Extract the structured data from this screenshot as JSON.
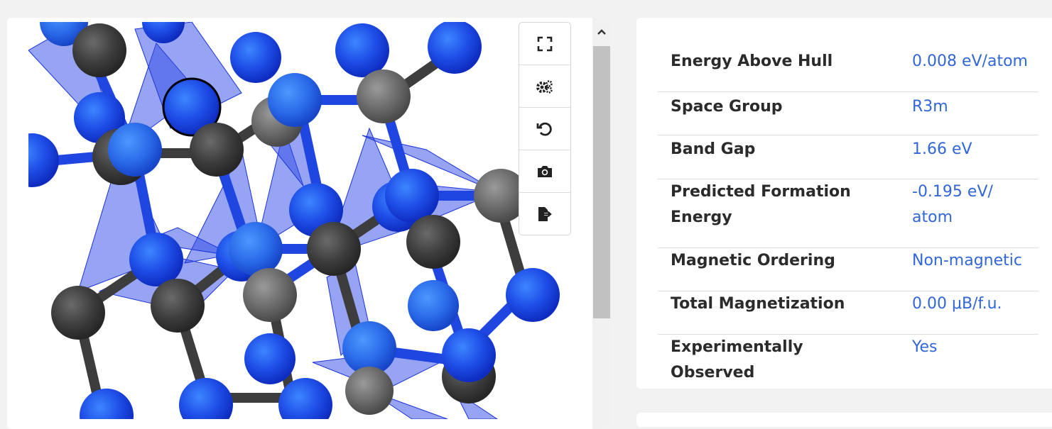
{
  "toolbar": {
    "buttons": [
      {
        "name": "fullscreen-icon"
      },
      {
        "name": "settings-icon"
      },
      {
        "name": "reset-view-icon"
      },
      {
        "name": "camera-icon"
      },
      {
        "name": "export-icon"
      }
    ]
  },
  "colors": {
    "cation": "#1f46e0",
    "cation_light": "#2a6ae8",
    "anion_dark": "#3d3d3d",
    "anion_gray": "#6a6a6a",
    "polyhedron": "#2f49e8",
    "label_text": "#2b2b2b",
    "value_text": "#3267d6"
  },
  "properties": [
    {
      "label": "Energy Above Hull",
      "value": "0.008 eV/atom"
    },
    {
      "label": "Space Group",
      "value": "R3m"
    },
    {
      "label": "Band Gap",
      "value": "1.66 eV"
    },
    {
      "label": "Predicted Formation Energy",
      "value": "-0.195 eV/ atom"
    },
    {
      "label": "Magnetic Ordering",
      "value": "Non-magnetic"
    },
    {
      "label": "Total Magnetization",
      "value": "0.00 μB/f.u."
    },
    {
      "label": "Experimentally Observed",
      "value": "Yes"
    }
  ]
}
